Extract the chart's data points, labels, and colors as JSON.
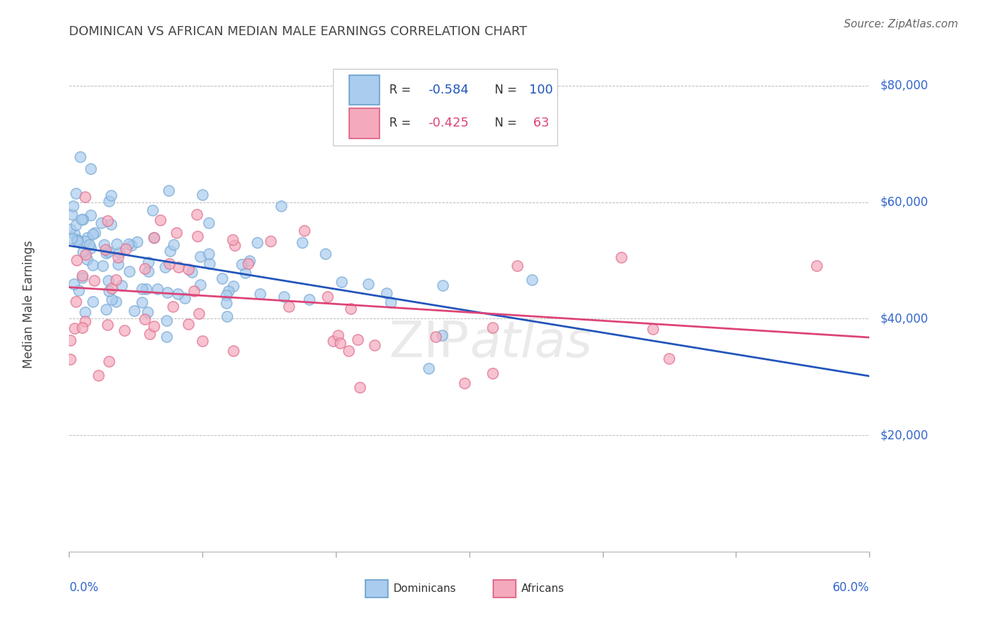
{
  "title": "DOMINICAN VS AFRICAN MEDIAN MALE EARNINGS CORRELATION CHART",
  "source": "Source: ZipAtlas.com",
  "ylabel": "Median Male Earnings",
  "xmin": 0.0,
  "xmax": 0.6,
  "ymin": 0,
  "ymax": 85000,
  "dominican_fill": "#AACCEE",
  "dominican_edge": "#7AAAD4",
  "african_fill": "#F4AABC",
  "african_edge": "#E07090",
  "line_dominican_color": "#2255BB",
  "line_african_color": "#DD4477",
  "watermark": "ZIPatlas",
  "background_color": "#FFFFFF",
  "grid_color": "#BBBBBB",
  "title_color": "#444444",
  "source_color": "#666666",
  "ylabel_color": "#444444",
  "axis_label_color": "#3366CC"
}
